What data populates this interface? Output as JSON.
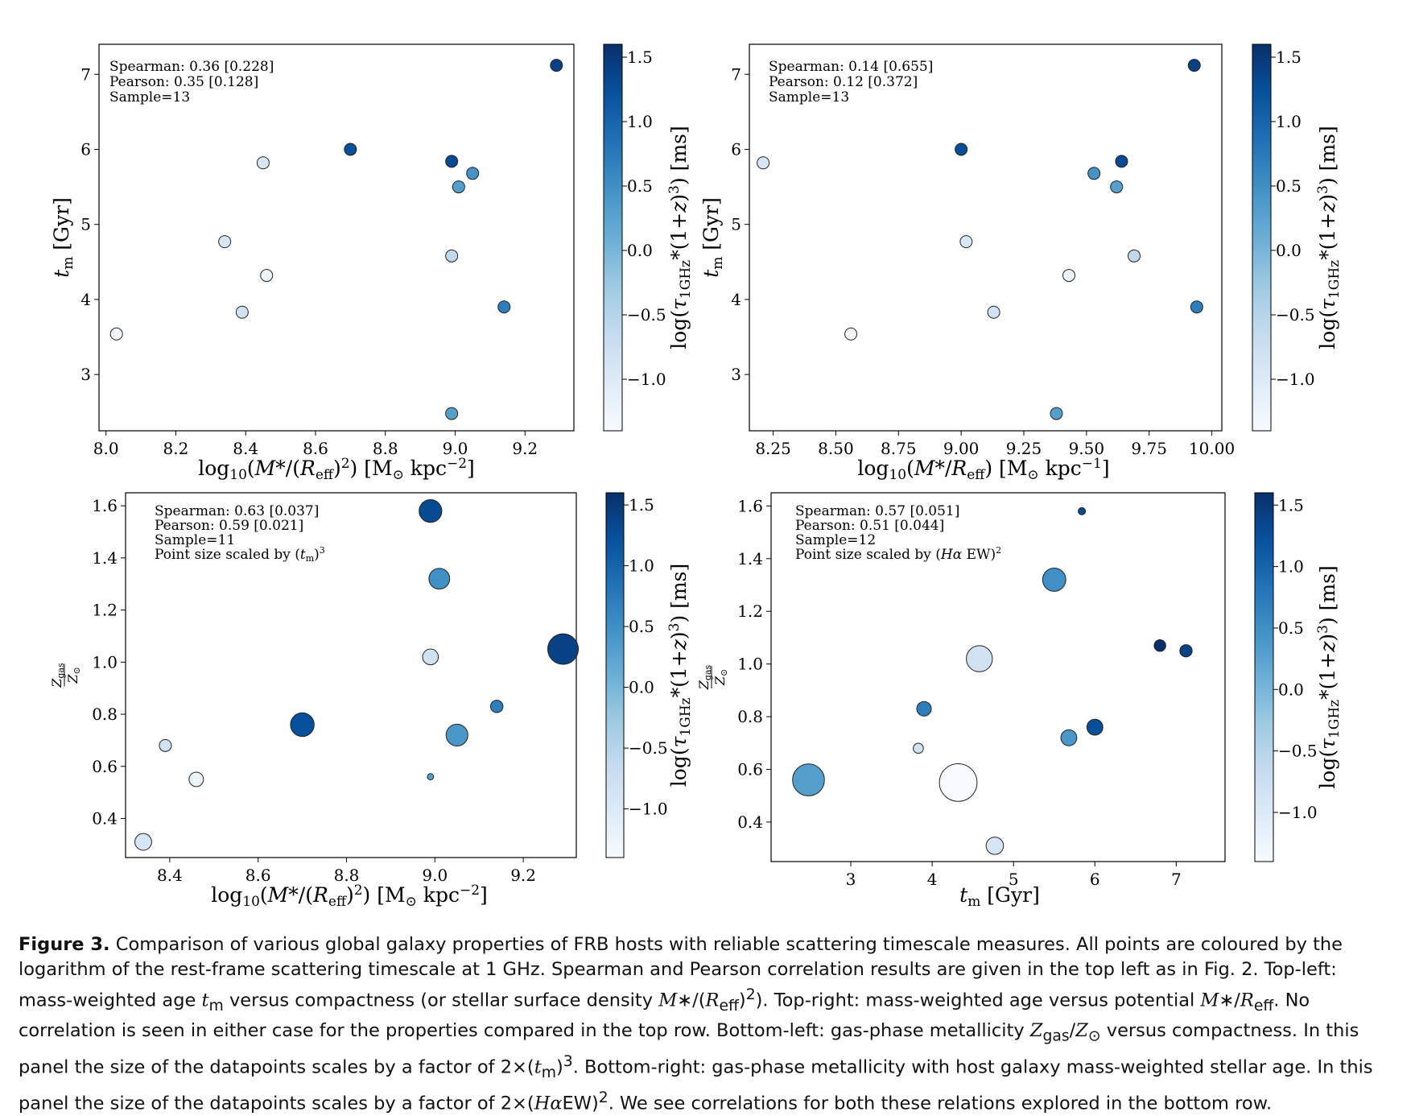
{
  "figure": {
    "colorbar": {
      "label": "log(τ1GHz*(1+z)3) [ms]",
      "ticks": [
        1.5,
        1.0,
        0.5,
        0.0,
        -0.5,
        -1.0
      ],
      "tick_labels": [
        "1.5",
        "1.0",
        "0.5",
        "0.0",
        "−0.5",
        "−1.0"
      ],
      "range": [
        -1.4,
        1.6
      ],
      "colormap": "Blues",
      "stops": [
        "#f7fbff",
        "#deebf7",
        "#c6dbef",
        "#9ecae1",
        "#6baed6",
        "#4292c6",
        "#2171b5",
        "#08519c",
        "#08306b"
      ]
    },
    "caption": {
      "lead": "Figure 3.",
      "line1": "Comparison of various global galaxy properties of FRB hosts with reliable scattering timescale measures. All points are coloured by the logarithm of the rest-frame scattering timescale at 1 GHz. Spearman and Pearson correlation results are given in the top left as in Fig. 2. Top-left: mass-weighted age",
      "line2a": "versus compactness (or stellar surface density",
      "line2b": "). Top-right: mass-weighted age versus potential",
      "line2c": ". No correlation is seen in either case for the properties compared in the top row. Bottom-left: gas-phase metallicity",
      "line3a": "versus compactness. In this panel the size of the datapoints scales by a factor of 2×",
      "line3b": ". Bottom-right: gas-phase metallicity with host galaxy mass-weighted stellar age. In this panel the size of the datapoints scales by a factor of 2×",
      "line3c": ". We see correlations for both these relations explored in the bottom row."
    }
  },
  "chart_data": [
    {
      "type": "scatter",
      "panel": "top-left",
      "xlabel": "log10(M*/(Reff)2) [M⊙ kpc−2]",
      "ylabel": "tm [Gyr]",
      "xlim": [
        7.98,
        9.34
      ],
      "ylim": [
        2.25,
        7.4
      ],
      "xticks": [
        8.0,
        8.2,
        8.4,
        8.6,
        8.8,
        9.0,
        9.2
      ],
      "xtick_labels": [
        "8.0",
        "8.2",
        "8.4",
        "8.6",
        "8.8",
        "9.0",
        "9.2"
      ],
      "yticks": [
        3,
        4,
        5,
        6,
        7
      ],
      "ytick_labels": [
        "3",
        "4",
        "5",
        "6",
        "7"
      ],
      "stats": [
        "Spearman: 0.36 [0.228]",
        "Pearson: 0.35 [0.128]",
        "Sample=13"
      ],
      "points": [
        {
          "x": 9.29,
          "y": 7.12,
          "c": 1.4
        },
        {
          "x": 8.45,
          "y": 5.82,
          "c": -0.9
        },
        {
          "x": 8.7,
          "y": 6.0,
          "c": 1.25
        },
        {
          "x": 8.99,
          "y": 5.84,
          "c": 1.3
        },
        {
          "x": 9.05,
          "y": 5.68,
          "c": 0.45
        },
        {
          "x": 9.01,
          "y": 5.5,
          "c": 0.3
        },
        {
          "x": 8.34,
          "y": 4.77,
          "c": -0.9
        },
        {
          "x": 8.99,
          "y": 4.58,
          "c": -0.6
        },
        {
          "x": 8.46,
          "y": 4.32,
          "c": -1.25
        },
        {
          "x": 9.14,
          "y": 3.9,
          "c": 0.7
        },
        {
          "x": 8.39,
          "y": 3.83,
          "c": -0.8
        },
        {
          "x": 8.03,
          "y": 3.54,
          "c": -1.4
        },
        {
          "x": 8.99,
          "y": 2.48,
          "c": 0.3
        }
      ]
    },
    {
      "type": "scatter",
      "panel": "top-right",
      "xlabel": "log10(M*/Reff) [M⊙ kpc−1]",
      "ylabel": "tm [Gyr]",
      "xlim": [
        8.155,
        10.04
      ],
      "ylim": [
        2.25,
        7.4
      ],
      "xticks": [
        8.25,
        8.5,
        8.75,
        9.0,
        9.25,
        9.5,
        9.75,
        10.0
      ],
      "xtick_labels": [
        "8.25",
        "8.50",
        "8.75",
        "9.00",
        "9.25",
        "9.50",
        "9.75",
        "10.00"
      ],
      "yticks": [
        3,
        4,
        5,
        6,
        7
      ],
      "ytick_labels": [
        "3",
        "4",
        "5",
        "6",
        "7"
      ],
      "stats": [
        "Spearman: 0.14 [0.655]",
        "Pearson: 0.12 [0.372]",
        "Sample=13"
      ],
      "points": [
        {
          "x": 9.93,
          "y": 7.12,
          "c": 1.4
        },
        {
          "x": 8.21,
          "y": 5.82,
          "c": -0.9
        },
        {
          "x": 9.0,
          "y": 6.0,
          "c": 1.25
        },
        {
          "x": 9.64,
          "y": 5.84,
          "c": 1.3
        },
        {
          "x": 9.53,
          "y": 5.68,
          "c": 0.45
        },
        {
          "x": 9.62,
          "y": 5.5,
          "c": 0.3
        },
        {
          "x": 9.02,
          "y": 4.77,
          "c": -0.9
        },
        {
          "x": 9.69,
          "y": 4.58,
          "c": -0.6
        },
        {
          "x": 9.43,
          "y": 4.32,
          "c": -1.25
        },
        {
          "x": 9.94,
          "y": 3.9,
          "c": 0.7
        },
        {
          "x": 9.13,
          "y": 3.83,
          "c": -0.8
        },
        {
          "x": 8.56,
          "y": 3.54,
          "c": -1.4
        },
        {
          "x": 9.38,
          "y": 2.48,
          "c": 0.3
        }
      ]
    },
    {
      "type": "scatter",
      "panel": "bottom-left",
      "xlabel": "log10(M*/(Reff)2) [M⊙ kpc−2]",
      "ylabel": "Zgas/Z⊙",
      "size_by": "tm",
      "xlim": [
        8.3,
        9.32
      ],
      "ylim": [
        0.25,
        1.65
      ],
      "xticks": [
        8.4,
        8.6,
        8.8,
        9.0,
        9.2
      ],
      "xtick_labels": [
        "8.4",
        "8.6",
        "8.8",
        "9.0",
        "9.2"
      ],
      "yticks": [
        0.4,
        0.6,
        0.8,
        1.0,
        1.2,
        1.4,
        1.6
      ],
      "ytick_labels": [
        "0.4",
        "0.6",
        "0.8",
        "1.0",
        "1.2",
        "1.4",
        "1.6"
      ],
      "stats": [
        "Spearman: 0.63 [0.037]",
        "Pearson: 0.59 [0.021]",
        "Sample=11",
        "Point size scaled by (tm)3"
      ],
      "points": [
        {
          "x": 8.99,
          "y": 1.58,
          "c": 1.3,
          "s": 5.84
        },
        {
          "x": 9.01,
          "y": 1.32,
          "c": 0.5,
          "s": 5.5
        },
        {
          "x": 9.29,
          "y": 1.05,
          "c": 1.4,
          "s": 7.12
        },
        {
          "x": 8.99,
          "y": 1.02,
          "c": -0.8,
          "s": 4.58
        },
        {
          "x": 9.14,
          "y": 0.83,
          "c": 0.7,
          "s": 3.9
        },
        {
          "x": 8.7,
          "y": 0.76,
          "c": 1.25,
          "s": 6.0
        },
        {
          "x": 9.05,
          "y": 0.72,
          "c": 0.4,
          "s": 5.68
        },
        {
          "x": 8.39,
          "y": 0.68,
          "c": -0.8,
          "s": 3.83
        },
        {
          "x": 8.99,
          "y": 0.56,
          "c": 0.3,
          "s": 2.48
        },
        {
          "x": 8.46,
          "y": 0.55,
          "c": -1.25,
          "s": 4.32
        },
        {
          "x": 8.34,
          "y": 0.31,
          "c": -0.9,
          "s": 4.77
        }
      ]
    },
    {
      "type": "scatter",
      "panel": "bottom-right",
      "xlabel": "tm [Gyr]",
      "ylabel": "Zgas/Z⊙",
      "size_by": "Hα EW",
      "xlim": [
        2.02,
        7.6
      ],
      "ylim": [
        0.25,
        1.65
      ],
      "xticks": [
        3,
        4,
        5,
        6,
        7
      ],
      "xtick_labels": [
        "3",
        "4",
        "5",
        "6",
        "7"
      ],
      "yticks": [
        0.4,
        0.6,
        0.8,
        1.0,
        1.2,
        1.4,
        1.6
      ],
      "ytick_labels": [
        "0.4",
        "0.6",
        "0.8",
        "1.0",
        "1.2",
        "1.4",
        "1.6"
      ],
      "stats": [
        "Spearman: 0.57 [0.051]",
        "Pearson: 0.51 [0.044]",
        "Sample=12",
        "Point size scaled by (Hα EW)2"
      ],
      "points": [
        {
          "x": 5.84,
          "y": 1.58,
          "c": 1.3,
          "s": 0.5
        },
        {
          "x": 5.5,
          "y": 1.32,
          "c": 0.5,
          "s": 1.6
        },
        {
          "x": 4.58,
          "y": 1.02,
          "c": -0.8,
          "s": 1.8
        },
        {
          "x": 6.8,
          "y": 1.07,
          "c": 1.6,
          "s": 0.8
        },
        {
          "x": 7.12,
          "y": 1.05,
          "c": 1.4,
          "s": 0.85
        },
        {
          "x": 3.9,
          "y": 0.83,
          "c": 0.7,
          "s": 1.0
        },
        {
          "x": 6.0,
          "y": 0.76,
          "c": 1.25,
          "s": 1.1
        },
        {
          "x": 5.68,
          "y": 0.72,
          "c": 0.4,
          "s": 1.1
        },
        {
          "x": 3.83,
          "y": 0.68,
          "c": -0.8,
          "s": 0.7
        },
        {
          "x": 2.48,
          "y": 0.56,
          "c": 0.3,
          "s": 2.2
        },
        {
          "x": 4.32,
          "y": 0.55,
          "c": -1.4,
          "s": 2.6
        },
        {
          "x": 4.77,
          "y": 0.31,
          "c": -0.9,
          "s": 1.2
        }
      ]
    }
  ]
}
